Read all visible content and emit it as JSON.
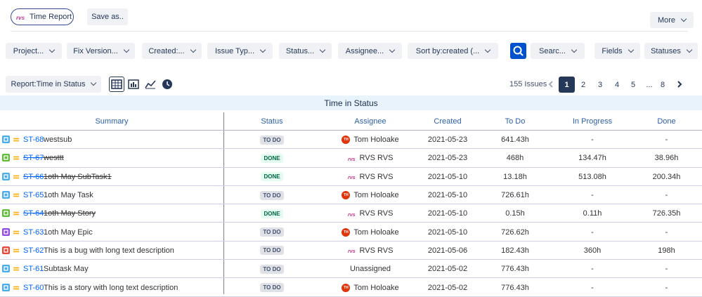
{
  "header": {
    "app_button": "Time Report",
    "save_button": "Save as..",
    "more_button": "More"
  },
  "filters": [
    "Project...",
    "Fix Version...",
    "Created:...",
    "Issue Typ...",
    "Status...",
    "Assignee...",
    "Sort by:created (...",
    "Searc...",
    "Fields",
    "Statuses"
  ],
  "report_select": "Report:Time in Status",
  "issues_count": "155 Issues",
  "pages": [
    "1",
    "2",
    "3",
    "4",
    "5",
    "...",
    "8"
  ],
  "table": {
    "title": "Time in Status",
    "columns": [
      "Summary",
      "Status",
      "Assignee",
      "Created",
      "To Do",
      "In Progress",
      "Done"
    ],
    "rows": [
      {
        "key": "ST-68",
        "summary": "westsub",
        "status": "TO DO",
        "avatar": "TH",
        "assignee": "Tom Holoake",
        "created": "2021-05-23",
        "todo": "641.43h",
        "in_progress": "-",
        "done": "-"
      },
      {
        "key": "ST-67",
        "summary": "westtt",
        "status": "DONE",
        "assignee": "RVS RVS",
        "created": "2021-05-23",
        "todo": "468h",
        "in_progress": "134.47h",
        "done": "38.96h"
      },
      {
        "key": "ST-66",
        "summary": "1oth May SubTask1",
        "status": "DONE",
        "assignee": "RVS RVS",
        "created": "2021-05-10",
        "todo": "13.18h",
        "in_progress": "513.08h",
        "done": "200.34h"
      },
      {
        "key": "ST-65",
        "summary": "1oth May Task",
        "status": "TO DO",
        "avatar": "TH",
        "assignee": "Tom Holoake",
        "created": "2021-05-10",
        "todo": "726.61h",
        "in_progress": "-",
        "done": "-"
      },
      {
        "key": "ST-64",
        "summary": "1oth May Story",
        "status": "DONE",
        "assignee": "RVS RVS",
        "created": "2021-05-10",
        "todo": "0.15h",
        "in_progress": "0.11h",
        "done": "726.35h"
      },
      {
        "key": "ST-63",
        "summary": "1oth May Epic",
        "status": "TO DO",
        "avatar": "TH",
        "assignee": "Tom Holoake",
        "created": "2021-05-10",
        "todo": "726.62h",
        "in_progress": "-",
        "done": "-"
      },
      {
        "key": "ST-62",
        "summary": "This is a bug with long text description",
        "status": "TO DO",
        "assignee": "RVS RVS",
        "created": "2021-05-06",
        "todo": "182.43h",
        "in_progress": "360h",
        "done": "198h"
      },
      {
        "key": "ST-61",
        "summary": "Subtask May",
        "status": "TO DO",
        "assignee": "Unassigned",
        "created": "2021-05-02",
        "todo": "776.43h",
        "in_progress": "-",
        "done": "-"
      },
      {
        "key": "ST-60",
        "summary": "This is a story with long text description",
        "status": "TO DO",
        "avatar": "TH",
        "assignee": "Tom Holoake",
        "created": "2021-05-02",
        "todo": "776.43h",
        "in_progress": "-",
        "done": "-"
      }
    ]
  }
}
